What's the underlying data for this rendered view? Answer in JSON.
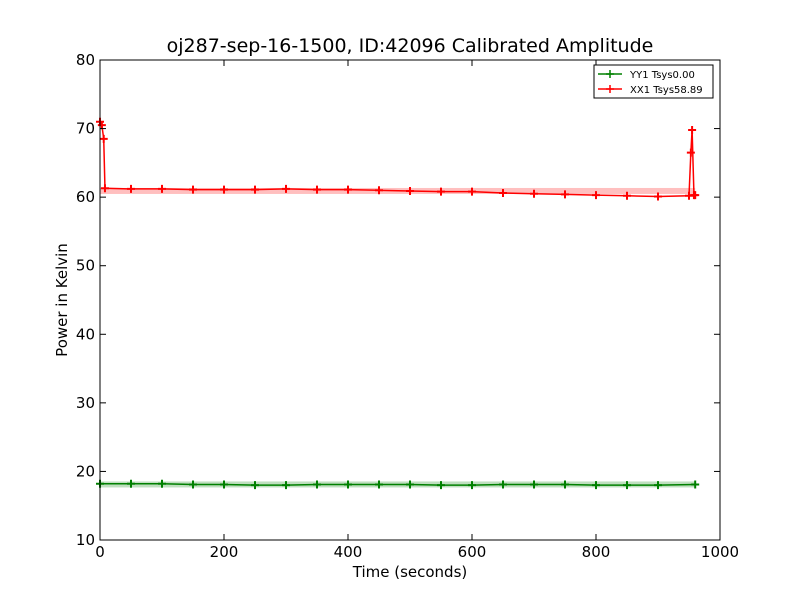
{
  "chart_data": {
    "type": "line",
    "title": "oj287-sep-16-1500, ID:42096 Calibrated Amplitude",
    "xlabel": "Time (seconds)",
    "ylabel": "Power in Kelvin",
    "xlim": [
      0,
      1000
    ],
    "ylim": [
      10,
      80
    ],
    "xticks": [
      "0",
      "200",
      "400",
      "600",
      "800",
      "1000"
    ],
    "yticks": [
      "10",
      "20",
      "30",
      "40",
      "50",
      "60",
      "70",
      "80"
    ],
    "grid": false,
    "legend_position": "top-right",
    "marker": "plus",
    "series": [
      {
        "name": "YY1 Tsys0.00",
        "color": "#008000",
        "x": [
          0,
          50,
          100,
          150,
          200,
          250,
          300,
          350,
          400,
          450,
          500,
          550,
          600,
          650,
          700,
          750,
          800,
          850,
          900,
          960
        ],
        "y": [
          18.2,
          18.2,
          18.2,
          18.1,
          18.1,
          18.0,
          18.0,
          18.1,
          18.1,
          18.1,
          18.1,
          18.0,
          18.0,
          18.1,
          18.1,
          18.1,
          18.0,
          18.0,
          18.0,
          18.1
        ]
      },
      {
        "name": "XX1 Tsys58.89",
        "color": "#ff0000",
        "x": [
          0,
          3,
          6,
          8,
          50,
          100,
          150,
          200,
          250,
          300,
          350,
          400,
          450,
          500,
          550,
          600,
          650,
          700,
          750,
          800,
          850,
          900,
          950,
          953,
          955,
          958,
          960
        ],
        "y": [
          71.0,
          70.5,
          68.5,
          61.3,
          61.2,
          61.2,
          61.1,
          61.1,
          61.1,
          61.2,
          61.1,
          61.1,
          61.0,
          60.9,
          60.8,
          60.8,
          60.6,
          60.5,
          60.4,
          60.3,
          60.2,
          60.1,
          60.2,
          66.5,
          69.8,
          60.3,
          60.3
        ]
      }
    ]
  }
}
